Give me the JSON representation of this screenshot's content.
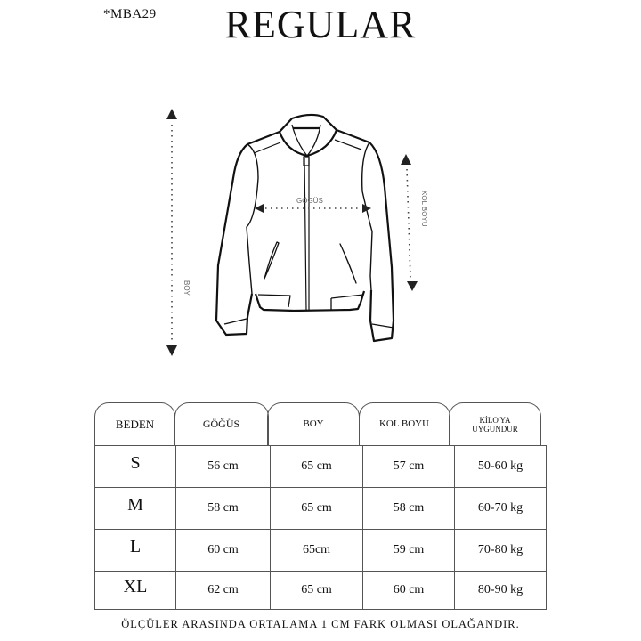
{
  "product_code": "*MBA29",
  "title": "REGULAR",
  "diagram": {
    "labels": {
      "chest": "GÖGÜS",
      "length": "BOY",
      "sleeve": "KOL BOYU"
    }
  },
  "table": {
    "headers": [
      "BEDEN",
      "GÖĞÜS",
      "BOY",
      "KOL BOYU",
      "KİLO'YA UYGUNDUR"
    ],
    "rows": [
      {
        "size": "S",
        "chest": "56 cm",
        "length": "65 cm",
        "sleeve": "57  cm",
        "weight": "50-60 kg"
      },
      {
        "size": "M",
        "chest": "58 cm",
        "length": "65 cm",
        "sleeve": "58 cm",
        "weight": "60-70 kg"
      },
      {
        "size": "L",
        "chest": "60 cm",
        "length": "65cm",
        "sleeve": "59 cm",
        "weight": "70-80 kg"
      },
      {
        "size": "XL",
        "chest": "62 cm",
        "length": "65 cm",
        "sleeve": "60 cm",
        "weight": "80-90 kg"
      }
    ]
  },
  "footer_note": "ÖLÇÜLER ARASINDA ORTALAMA 1 CM FARK OLMASI OLAĞANDIR."
}
